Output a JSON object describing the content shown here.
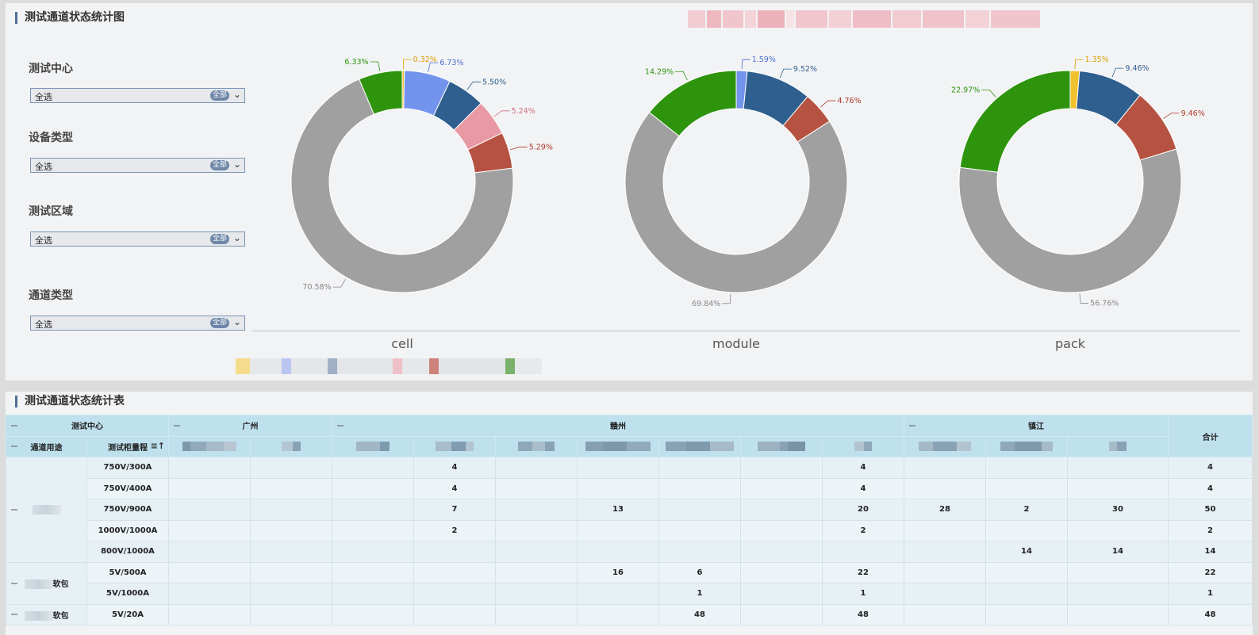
{
  "top_panel": {
    "title": "测试通道状态统计图"
  },
  "filters": [
    {
      "label": "测试中心",
      "value": "全选",
      "tag": "全部"
    },
    {
      "label": "设备类型",
      "value": "全选",
      "tag": "全部"
    },
    {
      "label": "测试区域",
      "value": "全选",
      "tag": "全部"
    },
    {
      "label": "通道类型",
      "value": "全选",
      "tag": "全部"
    }
  ],
  "colors": {
    "gray": "#a0a0a0",
    "green": "#2e940e",
    "yellow": "#f2c12e",
    "lightblue": "#7394ec",
    "darkblue": "#2f5f8f",
    "pink": "#e899a3",
    "red": "#b55241",
    "accent": "#4f6f92"
  },
  "chart_data": [
    {
      "type": "pie",
      "name": "cell",
      "slices": [
        {
          "color": "yellow",
          "value": 0.32,
          "label": "0.32%"
        },
        {
          "color": "lightblue",
          "value": 6.73,
          "label": "6.73%"
        },
        {
          "color": "darkblue",
          "value": 5.5,
          "label": "5.50%"
        },
        {
          "color": "pink",
          "value": 5.24,
          "label": "5.24%"
        },
        {
          "color": "red",
          "value": 5.29,
          "label": "5.29%"
        },
        {
          "color": "gray",
          "value": 70.58,
          "label": "70.58%"
        },
        {
          "color": "green",
          "value": 6.33,
          "label": "6.33%"
        }
      ]
    },
    {
      "type": "pie",
      "name": "module",
      "slices": [
        {
          "color": "lightblue",
          "value": 1.59,
          "label": "1.59%"
        },
        {
          "color": "darkblue",
          "value": 9.52,
          "label": "9.52%"
        },
        {
          "color": "red",
          "value": 4.76,
          "label": "4.76%"
        },
        {
          "color": "gray",
          "value": 69.84,
          "label": "69.84%"
        },
        {
          "color": "green",
          "value": 14.29,
          "label": "14.29%"
        }
      ]
    },
    {
      "type": "pie",
      "name": "pack",
      "slices": [
        {
          "color": "yellow",
          "value": 1.35,
          "label": "1.35%"
        },
        {
          "color": "darkblue",
          "value": 9.46,
          "label": "9.46%"
        },
        {
          "color": "red",
          "value": 9.46,
          "label": "9.46%"
        },
        {
          "color": "gray",
          "value": 56.76,
          "label": "56.76%"
        },
        {
          "color": "green",
          "value": 22.97,
          "label": "22.97%"
        }
      ]
    }
  ],
  "bottom_panel": {
    "title": "测试通道状态统计表"
  },
  "table": {
    "h_center": "测试中心",
    "h_usage": "通道用途",
    "h_range": "测试柜量程",
    "h_guangzhou": "广州",
    "h_ganzhou": "赣州",
    "h_zhenjiang": "镇江",
    "h_total": "合计",
    "rows": [
      {
        "group": "",
        "range": "750V/300A",
        "c": [
          "",
          "",
          "",
          "4",
          "",
          "",
          "",
          "",
          "4",
          "",
          "",
          "",
          "4"
        ]
      },
      {
        "group": "",
        "range": "750V/400A",
        "c": [
          "",
          "",
          "",
          "4",
          "",
          "",
          "",
          "",
          "4",
          "",
          "",
          "",
          "4"
        ]
      },
      {
        "group": "",
        "range": "750V/900A",
        "c": [
          "",
          "",
          "",
          "7",
          "",
          "13",
          "",
          "",
          "20",
          "28",
          "2",
          "30",
          "50"
        ]
      },
      {
        "group": "",
        "range": "1000V/1000A",
        "c": [
          "",
          "",
          "",
          "2",
          "",
          "",
          "",
          "",
          "2",
          "",
          "",
          "",
          "2"
        ]
      },
      {
        "group": "",
        "range": "800V/1000A",
        "c": [
          "",
          "",
          "",
          "",
          "",
          "",
          "",
          "",
          "",
          "",
          "14",
          "14",
          "14"
        ]
      },
      {
        "group": "软包",
        "range": "5V/500A",
        "c": [
          "",
          "",
          "",
          "",
          "",
          "16",
          "6",
          "",
          "22",
          "",
          "",
          "",
          "22"
        ]
      },
      {
        "group": "软包",
        "range": "5V/1000A",
        "c": [
          "",
          "",
          "",
          "",
          "",
          "",
          "1",
          "",
          "1",
          "",
          "",
          "",
          "1"
        ]
      },
      {
        "group": "软包",
        "range": "5V/20A",
        "c": [
          "",
          "",
          "",
          "",
          "",
          "",
          "48",
          "",
          "48",
          "",
          "",
          "",
          "48"
        ]
      }
    ],
    "group_labels": [
      "",
      "软包",
      "软包"
    ]
  }
}
